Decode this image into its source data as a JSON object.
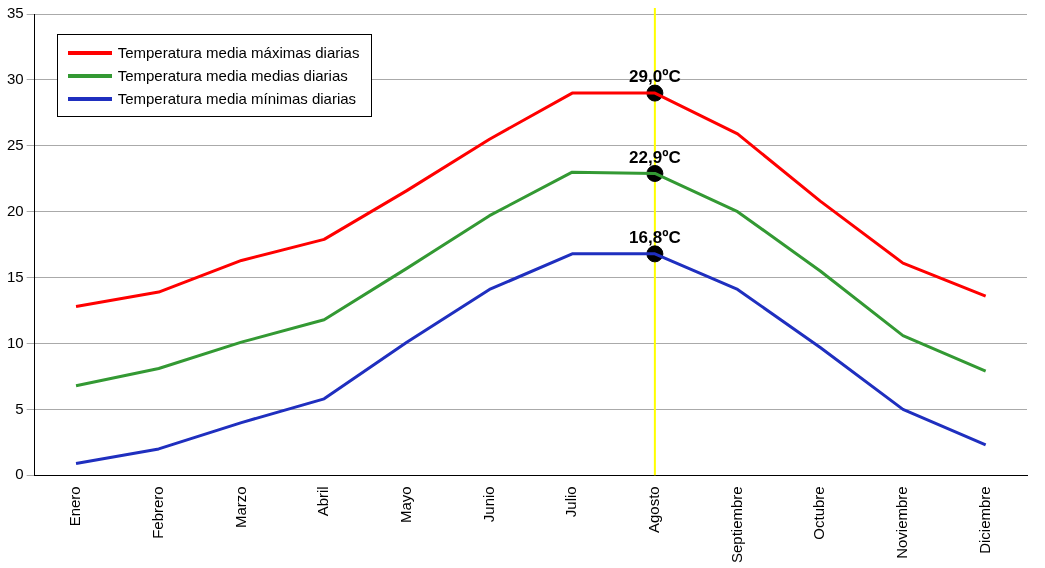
{
  "chart_data": {
    "type": "line",
    "categories": [
      "Enero",
      "Febrero",
      "Marzo",
      "Abril",
      "Mayo",
      "Junio",
      "Julio",
      "Agosto",
      "Septiembre",
      "Octubre",
      "Noviembre",
      "Diciembre"
    ],
    "series": [
      {
        "name": "Temperatura media máximas diarias",
        "color": "#ff0000",
        "values": [
          12.8,
          13.9,
          16.3,
          17.9,
          21.6,
          25.5,
          29.0,
          29.0,
          25.9,
          20.8,
          16.1,
          13.6
        ]
      },
      {
        "name": "Temperatura media medias diarias",
        "color": "#339933",
        "values": [
          6.8,
          8.1,
          10.1,
          11.8,
          15.7,
          19.7,
          23.0,
          22.9,
          20.0,
          15.5,
          10.6,
          7.9
        ]
      },
      {
        "name": "Temperatura media mínimas diarias",
        "color": "#1f2fbf",
        "values": [
          0.9,
          2.0,
          4.0,
          5.8,
          10.1,
          14.1,
          16.8,
          16.8,
          14.1,
          9.7,
          5.0,
          2.3
        ]
      },
      {
        "type": "scatter",
        "color": "#000000",
        "marker": "circle",
        "x": [
          "Agosto",
          "Agosto",
          "Agosto"
        ],
        "values": [
          29.0,
          22.9,
          16.8
        ],
        "value_labels": [
          "29,0ºC",
          "22,9ºC",
          "16,8ºC"
        ]
      }
    ],
    "ylim": [
      0,
      35
    ],
    "yticks": [
      0,
      5,
      10,
      15,
      20,
      25,
      30,
      35
    ],
    "grid": "y",
    "legend": "top left",
    "marker": "none",
    "line_style": "solid",
    "ref_lines": [
      {
        "axis": "x",
        "value": "Agosto",
        "color": "#ffff00"
      }
    ]
  }
}
